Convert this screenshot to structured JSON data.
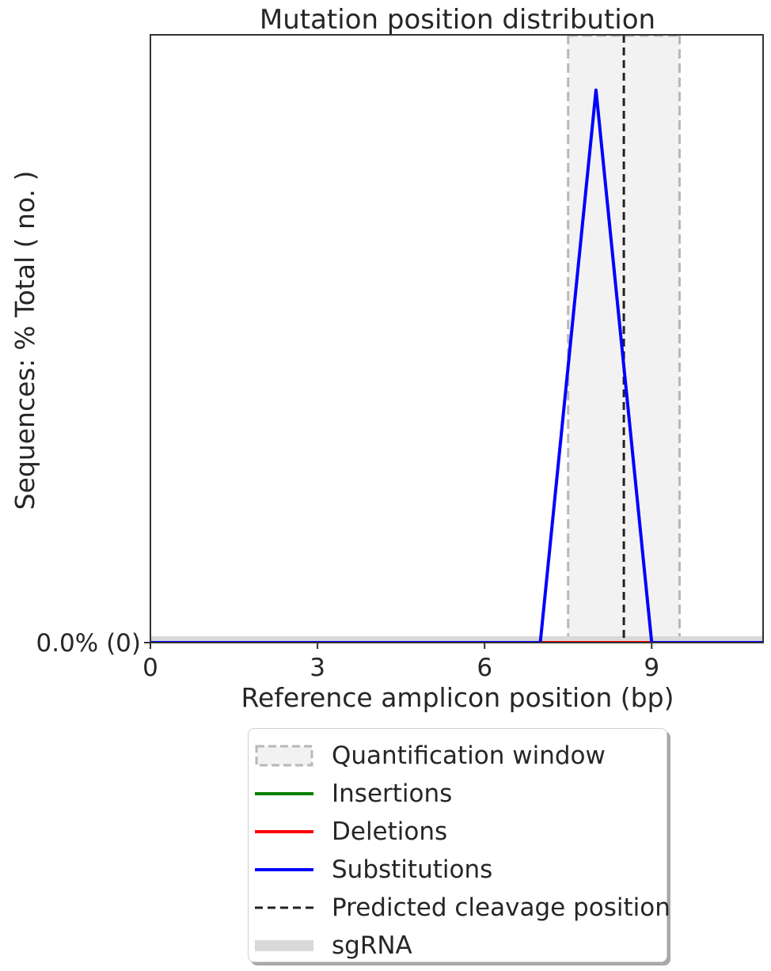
{
  "chart_data": {
    "type": "line",
    "title": "Mutation position distribution",
    "xlabel": "Reference amplicon position (bp)",
    "ylabel": "Sequences: % Total ( no. )",
    "xlim": [
      0,
      11
    ],
    "xticks": [
      0,
      3,
      6,
      9
    ],
    "ytick_labels": [
      {
        "y": 0,
        "label": "0.0% (0)"
      }
    ],
    "ylim": [
      0,
      1.1
    ],
    "grid": false,
    "legend_position": "below plot",
    "quantification_window": [
      7.5,
      9.5
    ],
    "predicted_cleavage_position": 8.5,
    "sgrna": [
      0,
      11
    ],
    "x": [
      0,
      1,
      2,
      3,
      4,
      5,
      6,
      7,
      8,
      9,
      10,
      11
    ],
    "series": [
      {
        "name": "Insertions",
        "color": "#008000",
        "values": [
          0,
          0,
          0,
          0,
          0,
          0,
          0,
          0,
          0,
          0,
          0,
          0
        ]
      },
      {
        "name": "Deletions",
        "color": "#ff0000",
        "values": [
          0,
          0,
          0,
          0,
          0,
          0,
          0,
          0,
          0,
          0,
          0,
          0
        ]
      },
      {
        "name": "Substitutions",
        "color": "#0000ff",
        "values": [
          0,
          0,
          0,
          0,
          0,
          0,
          0,
          0,
          1,
          0,
          0,
          0
        ]
      }
    ]
  },
  "legend": {
    "items": [
      {
        "label": "Quantification window",
        "kind": "window"
      },
      {
        "label": "Insertions",
        "kind": "line",
        "color": "#008000"
      },
      {
        "label": "Deletions",
        "kind": "line",
        "color": "#ff0000"
      },
      {
        "label": "Substitutions",
        "kind": "line",
        "color": "#0000ff"
      },
      {
        "label": "Predicted cleavage position",
        "kind": "dashed",
        "color": "#222222"
      },
      {
        "label": "sgRNA",
        "kind": "band",
        "color": "#d9d9d9"
      }
    ]
  }
}
